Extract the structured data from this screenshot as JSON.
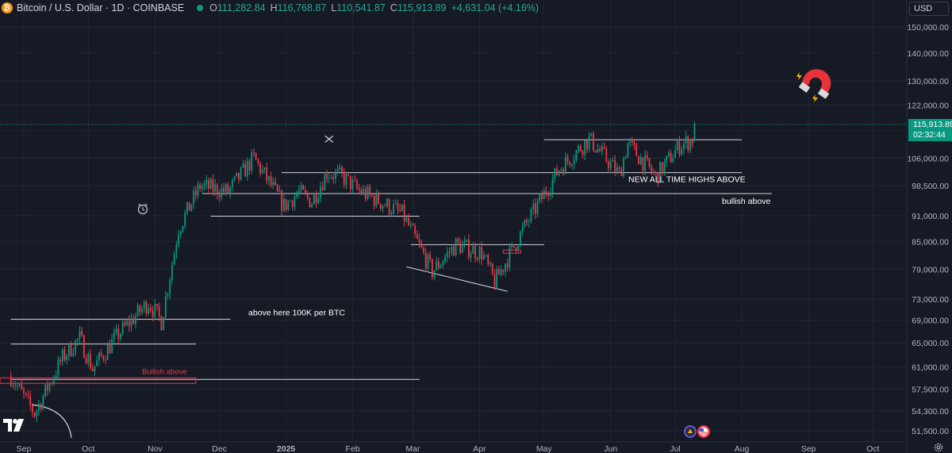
{
  "header": {
    "symbol": "Bitcoin / U.S. Dollar · 1D · COINBASE",
    "open_label": "O",
    "open": "111,282.84",
    "high_label": "H",
    "high": "116,768.87",
    "low_label": "L",
    "low": "110,541.87",
    "close_label": "C",
    "close": "115,913.89",
    "change": "+4,631.04 (+4.16%)"
  },
  "currency": "USD",
  "last_price": {
    "value": "115,913.89",
    "countdown": "02:32:44"
  },
  "colors": {
    "up": "#089981",
    "down": "#f23645",
    "background": "#161a25",
    "grid": "#232632",
    "line": "#d1d4dc"
  },
  "icons": [
    "bitcoin-icon",
    "magnet-icon",
    "alarm-icon",
    "tradingview-logo-icon",
    "settings-gear-icon",
    "us-flag-icon"
  ],
  "chart_data": {
    "type": "candlestick",
    "scale": "log",
    "y_ticks": [
      51500,
      54300,
      57500,
      61000,
      65000,
      69000,
      73000,
      79000,
      85000,
      91000,
      98500,
      106000,
      114000,
      122000,
      130000,
      140000,
      150000
    ],
    "y_tick_labels": [
      "51,500.00",
      "54,300.00",
      "57,500.00",
      "61,000.00",
      "65,000.00",
      "69,000.00",
      "73,000.00",
      "79,000.00",
      "85,000.00",
      "91,000.00",
      "98,500.00",
      "106,000.00",
      "114,000.00",
      "122,000.00",
      "130,000.00",
      "140,000.00",
      "150,000.00"
    ],
    "x_ticks": [
      "Sep",
      "Oct",
      "Nov",
      "Dec",
      "2025",
      "Feb",
      "Mar",
      "Apr",
      "May",
      "Jun",
      "Jul",
      "Aug",
      "Sep",
      "Oct"
    ],
    "x_range": [
      "2024-08-26",
      "2025-10-31"
    ],
    "series_anchor_closes": [
      [
        "2024-08-26",
        59500
      ],
      [
        "2024-09-06",
        53900
      ],
      [
        "2024-09-19",
        62500
      ],
      [
        "2024-09-27",
        65800
      ],
      [
        "2024-10-03",
        60700
      ],
      [
        "2024-10-15",
        66500
      ],
      [
        "2024-10-29",
        72400
      ],
      [
        "2024-11-04",
        68800
      ],
      [
        "2024-11-12",
        88000
      ],
      [
        "2024-11-22",
        98500
      ],
      [
        "2024-12-05",
        97000
      ],
      [
        "2024-12-17",
        106000
      ],
      [
        "2024-12-31",
        93400
      ],
      [
        "2025-01-07",
        96800
      ],
      [
        "2025-01-13",
        94500
      ],
      [
        "2025-01-20",
        102000
      ],
      [
        "2025-01-27",
        101000
      ],
      [
        "2025-02-03",
        97600
      ],
      [
        "2025-02-24",
        91500
      ],
      [
        "2025-03-10",
        78500
      ],
      [
        "2025-03-21",
        84300
      ],
      [
        "2025-04-02",
        82500
      ],
      [
        "2025-04-08",
        76300
      ],
      [
        "2025-04-21",
        87500
      ],
      [
        "2025-05-08",
        103000
      ],
      [
        "2025-05-22",
        111500
      ],
      [
        "2025-06-05",
        101500
      ],
      [
        "2025-06-09",
        110200
      ],
      [
        "2025-06-22",
        100900
      ],
      [
        "2025-07-03",
        109600
      ],
      [
        "2025-07-09",
        111300
      ],
      [
        "2025-07-10",
        115913
      ]
    ],
    "levels": [
      {
        "price": 111300,
        "from": "2025-05-01",
        "to": "2025-08-01"
      },
      {
        "price": 102000,
        "from": "2024-12-30",
        "to": "2025-08-01"
      },
      {
        "price": 96500,
        "from": "2024-11-23",
        "to": "2025-08-15"
      },
      {
        "price": 90900,
        "from": "2024-11-27",
        "to": "2025-03-04"
      },
      {
        "price": 84300,
        "from": "2025-02-28",
        "to": "2025-05-01"
      },
      {
        "price": 69200,
        "from": "2024-08-26",
        "to": "2024-12-06"
      },
      {
        "price": 64800,
        "from": "2024-08-26",
        "to": "2024-11-20"
      },
      {
        "price": 59000,
        "from": "2024-08-26",
        "to": "2025-03-04"
      }
    ],
    "annotations": {
      "ath": "NEW ALL TIME HIGHS ABOVE",
      "bullish": "bullish above",
      "btc100k": "above here 100K per BTC",
      "bullish_red": "Bullish above"
    }
  }
}
